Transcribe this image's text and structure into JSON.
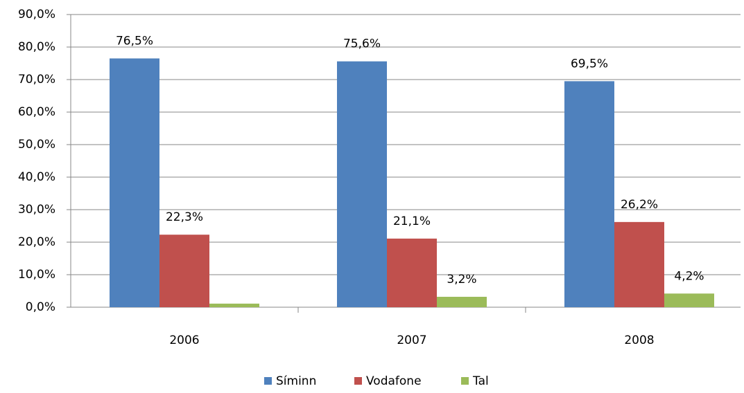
{
  "chart_data": {
    "type": "bar",
    "categories": [
      "2006",
      "2007",
      "2008"
    ],
    "series": [
      {
        "name": "Síminn",
        "color": "#4f81bd",
        "values": [
          76.5,
          75.6,
          69.5
        ],
        "value_labels": [
          "76,5%",
          "75,6%",
          "69,5%"
        ]
      },
      {
        "name": "Vodafone",
        "color": "#c0504d",
        "values": [
          22.3,
          21.1,
          26.2
        ],
        "value_labels": [
          "22,3%",
          "21,1%",
          "26,2%"
        ]
      },
      {
        "name": "Tal",
        "color": "#9bbb59",
        "values": [
          1.1,
          3.2,
          4.2
        ],
        "value_labels": [
          null,
          "3,2%",
          "4,2%"
        ]
      }
    ],
    "ylim": [
      0,
      90
    ],
    "yticks": [
      {
        "value": 0,
        "label": "0,0%"
      },
      {
        "value": 10,
        "label": "10,0%"
      },
      {
        "value": 20,
        "label": "20,0%"
      },
      {
        "value": 30,
        "label": "30,0%"
      },
      {
        "value": 40,
        "label": "40,0%"
      },
      {
        "value": 50,
        "label": "50,0%"
      },
      {
        "value": 60,
        "label": "60,0%"
      },
      {
        "value": 70,
        "label": "70,0%"
      },
      {
        "value": 80,
        "label": "80,0%"
      },
      {
        "value": 90,
        "label": "90,0%"
      }
    ],
    "grid": true,
    "legend": "bottom"
  }
}
